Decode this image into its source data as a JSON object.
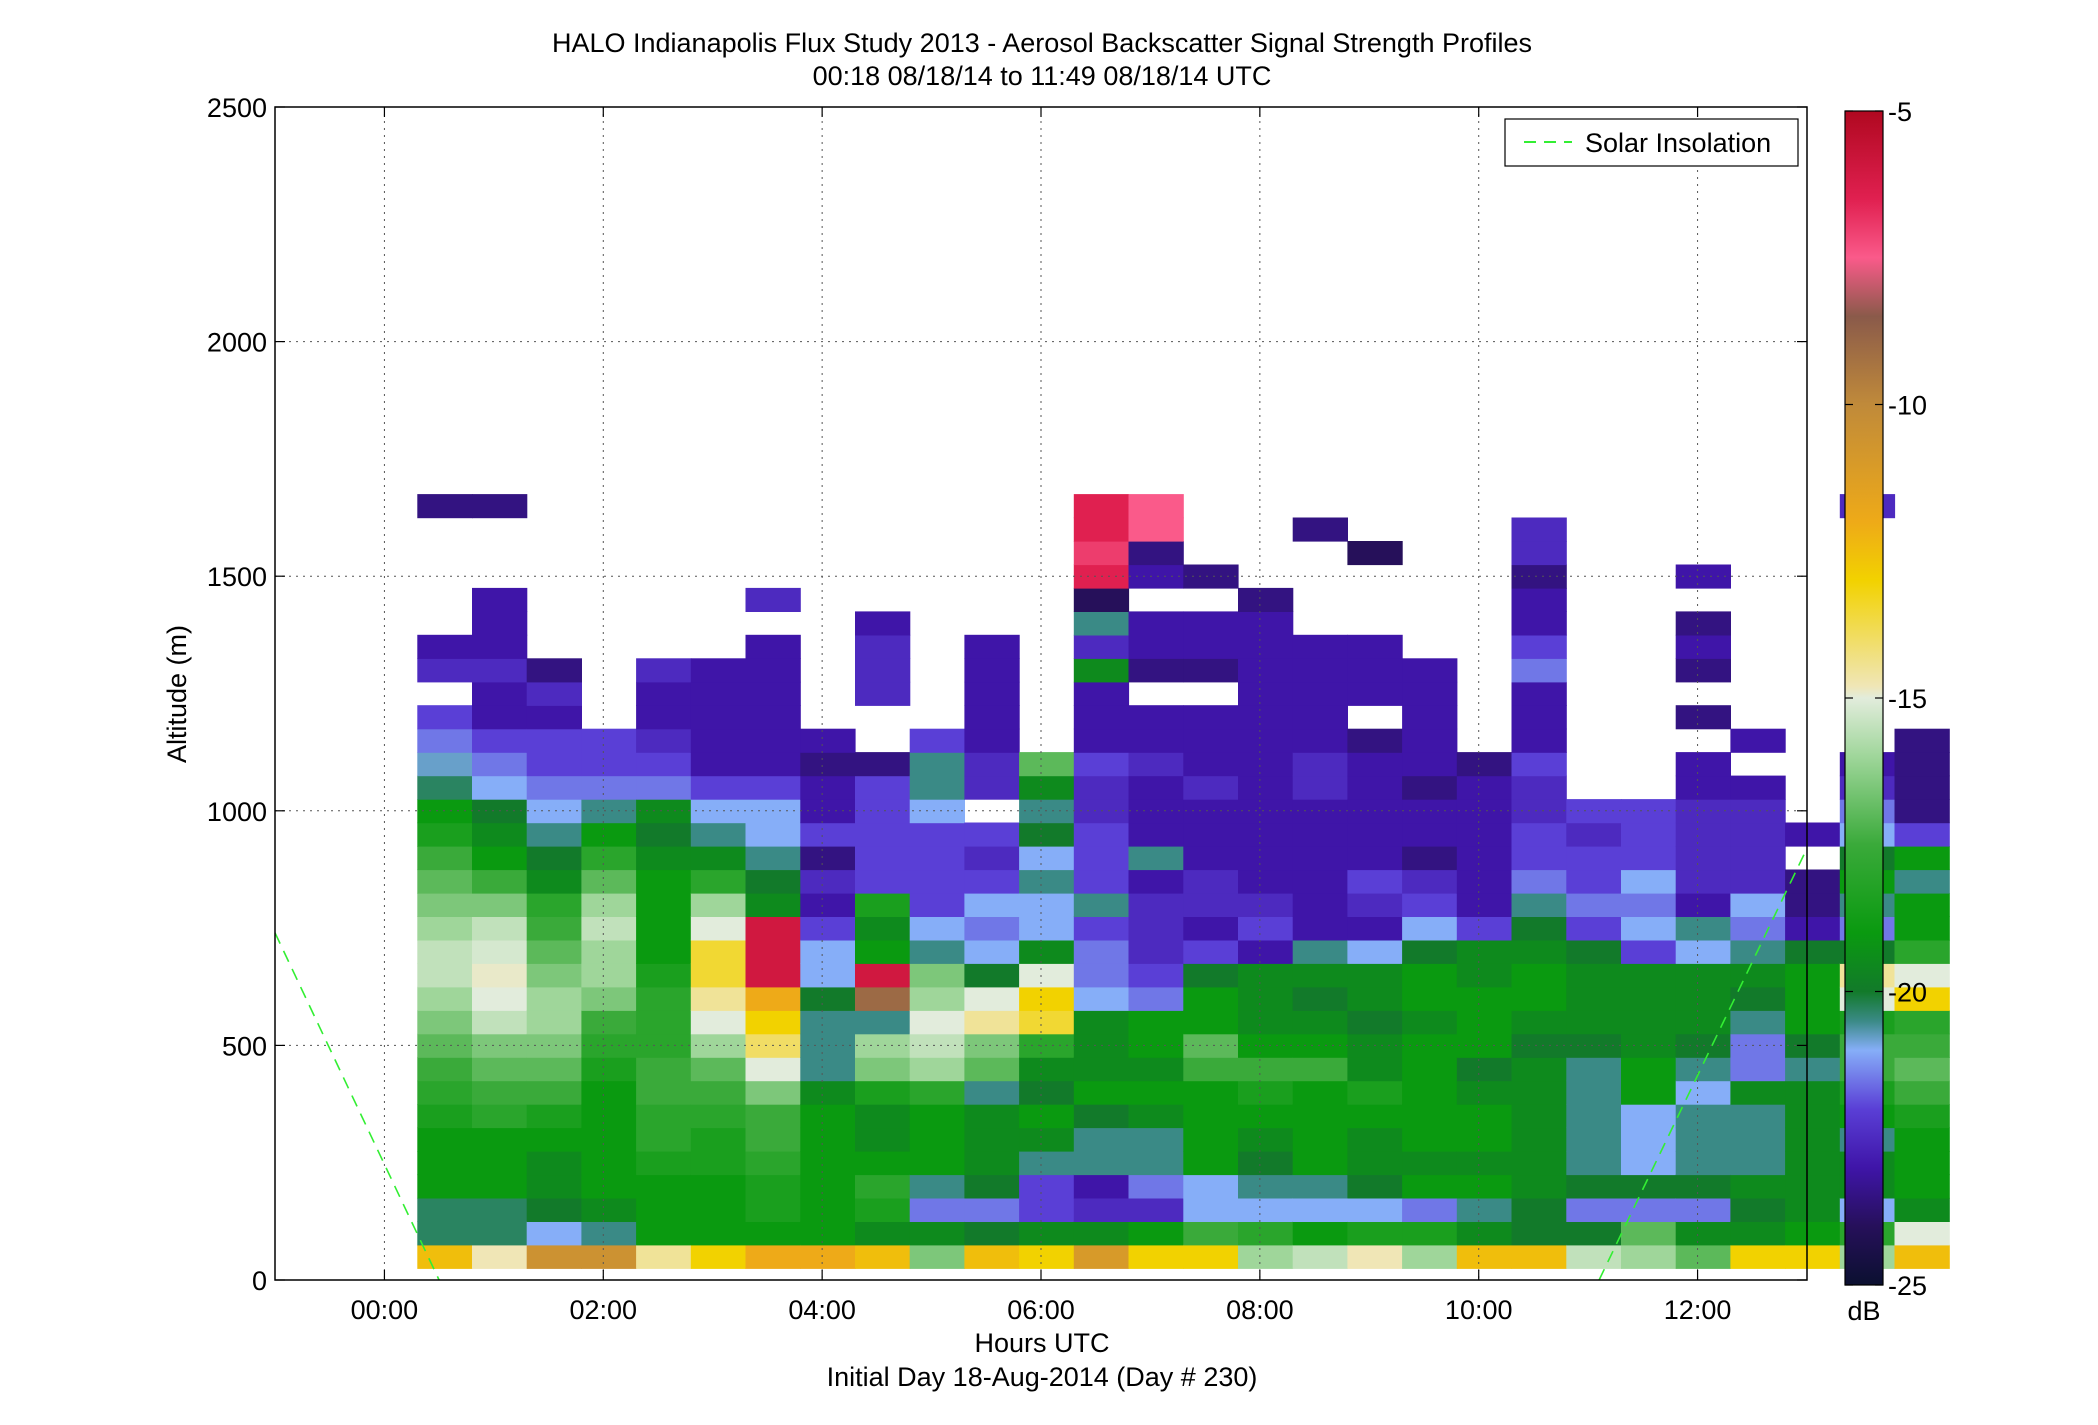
{
  "chart_data": {
    "type": "heatmap",
    "title": "HALO Indianapolis Flux Study 2013 - Aerosol Backscatter Signal Strength Profiles",
    "subtitle": "00:18 08/18/14 to 11:49 08/18/14  UTC",
    "xlabel": "Hours UTC",
    "xlabel2": "Initial Day 18-Aug-2014 (Day # 230)",
    "ylabel": "Altitude (m)",
    "xlim": [
      -1.0,
      13.0
    ],
    "ylim": [
      0,
      2500
    ],
    "x_ticks": [
      0,
      2,
      4,
      6,
      8,
      10,
      12
    ],
    "x_tick_labels": [
      "00:00",
      "02:00",
      "04:00",
      "06:00",
      "08:00",
      "10:00",
      "12:00"
    ],
    "y_ticks": [
      0,
      500,
      1000,
      1500,
      2000,
      2500
    ],
    "y_tick_labels": [
      "0",
      "500",
      "1000",
      "1500",
      "2000",
      "2500"
    ],
    "grid": true,
    "legend": {
      "position": "top-right",
      "entries": [
        {
          "label": "Solar Insolation",
          "color": "#33ee33",
          "style": "dashed"
        }
      ]
    },
    "colorbar": {
      "unit": "dB",
      "range": [
        -25,
        -5
      ],
      "ticks": [
        -25,
        -20,
        -15,
        -10,
        -5
      ],
      "tick_labels": [
        "-25",
        "-20",
        "-15",
        "-10",
        "-5"
      ],
      "stops": [
        [
          -25,
          "#0b1030"
        ],
        [
          -24,
          "#26105a"
        ],
        [
          -23,
          "#3f15a8"
        ],
        [
          -22,
          "#5a3fd6"
        ],
        [
          -21,
          "#86aef8"
        ],
        [
          -20.5,
          "#3a8a86"
        ],
        [
          -20,
          "#127a2a"
        ],
        [
          -19,
          "#0a9a10"
        ],
        [
          -17.5,
          "#3aaa3a"
        ],
        [
          -16,
          "#9fd69a"
        ],
        [
          -15,
          "#e2ecdc"
        ],
        [
          -14.8,
          "#f0e6b6"
        ],
        [
          -13,
          "#f2d200"
        ],
        [
          -12,
          "#eeaa18"
        ],
        [
          -10,
          "#c08a3a"
        ],
        [
          -8.5,
          "#8a5a4a"
        ],
        [
          -7.5,
          "#fa5a8a"
        ],
        [
          -6.5,
          "#e02050"
        ],
        [
          -5,
          "#b00820"
        ]
      ]
    },
    "time_start_hours": 0.3,
    "time_step_hours": 0.5,
    "altitude_start_m": 50,
    "altitude_step_m": 50,
    "profiles": [
      [
        -12.5,
        -20.3,
        -20.3,
        -19.0,
        -19.0,
        -19.0,
        -18.5,
        -18.0,
        -17.5,
        -17.0,
        -16.5,
        -16.0,
        -15.5,
        -15.5,
        -16.0,
        -16.5,
        -17.0,
        -17.5,
        -18.5,
        -19.0,
        -20.3,
        -20.8,
        -21.5,
        -22.0,
        null,
        -22.5,
        -23.0,
        null,
        null,
        null,
        null,
        null,
        -23.5
      ],
      [
        -14.8,
        -20.3,
        -20.3,
        -19.0,
        -19.0,
        -19.0,
        -18.0,
        -17.5,
        -17.0,
        -16.5,
        -15.5,
        -15.0,
        -14.9,
        -15.2,
        -15.5,
        -16.5,
        -17.5,
        -19.0,
        -19.5,
        -20.0,
        -21.0,
        -21.5,
        -22.0,
        -23.0,
        -23.0,
        -22.5,
        -23.0,
        -23.0,
        -23.0,
        null,
        null,
        null,
        -23.5
      ],
      [
        -10.5,
        -21.0,
        -20.0,
        -19.5,
        -19.5,
        -19.0,
        -18.5,
        -17.5,
        -17.0,
        -16.5,
        -16.0,
        -16.0,
        -16.5,
        -17.0,
        -17.5,
        -18.0,
        -19.5,
        -20.0,
        -20.5,
        -21.0,
        -21.5,
        -22.0,
        -22.0,
        -23.0,
        -22.5,
        -23.5,
        null,
        null,
        null,
        null,
        null,
        null,
        null
      ],
      [
        -10.5,
        -20.5,
        -19.5,
        -19.0,
        -19.0,
        -19.0,
        -19.0,
        -19.0,
        -18.5,
        -18.0,
        -17.5,
        -16.5,
        -16.0,
        -16.0,
        -15.5,
        -16.0,
        -17.0,
        -18.0,
        -19.0,
        -20.5,
        -21.5,
        -22.0,
        -22.0,
        null,
        null,
        null,
        null,
        null,
        null,
        null,
        null,
        null,
        null
      ],
      [
        -14.5,
        -19.0,
        -19.0,
        -19.0,
        -18.5,
        -18.0,
        -18.0,
        -17.5,
        -17.5,
        -18.0,
        -18.0,
        -18.0,
        -18.5,
        -19.0,
        -19.0,
        -19.0,
        -19.0,
        -19.5,
        -20.0,
        -19.5,
        -21.5,
        -22.0,
        -22.5,
        -23.0,
        -23.0,
        -22.5,
        null,
        null,
        null,
        null,
        null,
        null,
        null
      ],
      [
        -13.0,
        -19.0,
        -19.0,
        -19.0,
        -18.5,
        -18.5,
        -18.0,
        -17.5,
        -17.0,
        -16.0,
        -15.0,
        -14.5,
        -13.5,
        -13.5,
        -15.0,
        -16.0,
        -18.0,
        -19.5,
        -20.5,
        -21.0,
        -22.0,
        -23.0,
        -23.0,
        -23.0,
        -23.0,
        -23.0,
        null,
        null,
        null,
        null,
        null,
        null,
        null
      ],
      [
        -12.0,
        -19.0,
        -18.5,
        -18.5,
        -18.0,
        -17.5,
        -17.5,
        -16.5,
        -15.0,
        -14.0,
        -13.0,
        -12.0,
        -6.0,
        -6.0,
        -6.0,
        -19.5,
        -20.0,
        -20.5,
        -21.0,
        -21.0,
        -22.0,
        -23.0,
        -23.0,
        -23.0,
        -23.0,
        -23.0,
        -23.0,
        null,
        -22.5,
        null,
        null,
        null,
        null
      ],
      [
        -12.0,
        -19.0,
        -19.0,
        -19.0,
        -19.0,
        -19.0,
        -19.0,
        -19.5,
        -20.5,
        -20.5,
        -20.5,
        -20.0,
        -21.0,
        -21.0,
        -22.0,
        -23.0,
        -22.5,
        -23.5,
        -22.0,
        -23.0,
        -23.0,
        -23.5,
        -23.0,
        null,
        null,
        null,
        null,
        null,
        null,
        null,
        null,
        null,
        null
      ],
      [
        -12.5,
        -19.5,
        -18.5,
        -18.0,
        -19.0,
        -19.5,
        -19.5,
        -18.5,
        -16.5,
        -16.0,
        -20.5,
        -9.0,
        -6.0,
        -19.0,
        -19.5,
        -18.5,
        -22.0,
        -22.0,
        -22.0,
        -22.0,
        -22.0,
        -23.5,
        null,
        null,
        -22.5,
        -22.5,
        -22.5,
        -23.0,
        null,
        null,
        null,
        null,
        null
      ],
      [
        -16.5,
        -19.5,
        -21.5,
        -20.5,
        -19.0,
        -19.0,
        -19.0,
        -18.0,
        -16.0,
        -15.5,
        -15.0,
        -16.0,
        -16.5,
        -20.5,
        -21.0,
        -22.0,
        -22.0,
        -22.0,
        -22.0,
        -21.0,
        -20.5,
        -20.5,
        -22.0,
        null,
        null,
        null,
        null,
        null,
        null,
        null,
        null,
        null,
        null
      ],
      [
        -12.5,
        -20.0,
        -21.5,
        -20.0,
        -19.5,
        -19.5,
        -19.5,
        -20.5,
        -17.0,
        -16.5,
        -14.5,
        -15.0,
        -20.0,
        -21.0,
        -21.5,
        -21.0,
        -22.0,
        -22.5,
        -22.0,
        null,
        -22.5,
        -22.5,
        -23.0,
        -23.0,
        -23.0,
        -23.0,
        -23.0,
        null,
        null,
        null,
        null,
        null,
        null
      ],
      [
        -13.0,
        -19.5,
        -22.0,
        -22.0,
        -20.5,
        -19.5,
        -19.0,
        -20.0,
        -19.5,
        -18.0,
        -13.5,
        -13.0,
        -15.0,
        -19.5,
        -21.0,
        -21.0,
        -20.5,
        -21.0,
        -20.0,
        -20.5,
        -19.5,
        -17.0,
        null,
        null,
        null,
        null,
        null,
        null,
        null,
        null,
        null,
        null,
        null
      ],
      [
        -11.0,
        -19.5,
        -22.5,
        -23.0,
        -20.5,
        -20.5,
        -20.0,
        -19.0,
        -19.5,
        -19.5,
        -19.5,
        -21.0,
        -21.5,
        -21.5,
        -22.0,
        -20.5,
        -22.0,
        -22.0,
        -22.0,
        -22.5,
        -22.5,
        -22.0,
        -23.0,
        -23.0,
        -23.0,
        -19.5,
        -22.5,
        -20.5,
        -24.0,
        -6.5,
        -7.0,
        -6.5,
        -6.5
      ],
      [
        -13.0,
        -19.0,
        -22.5,
        -21.5,
        -20.5,
        -20.5,
        -19.5,
        -19.0,
        -19.5,
        -19.0,
        -19.0,
        -21.5,
        -22.0,
        -22.5,
        -22.5,
        -22.5,
        -23.0,
        -20.5,
        -23.0,
        -23.0,
        -23.0,
        -22.5,
        -23.0,
        -23.0,
        null,
        -23.5,
        -23.0,
        -23.0,
        null,
        -23.0,
        -23.5,
        -7.5,
        -7.5
      ],
      [
        -13.0,
        -17.5,
        -21.0,
        -21.0,
        -19.0,
        -19.0,
        -19.0,
        -19.0,
        -17.5,
        -17.0,
        -19.0,
        -19.0,
        -20.0,
        -22.0,
        -23.0,
        -22.5,
        -22.5,
        -23.0,
        -23.0,
        -23.0,
        -22.5,
        -23.0,
        -23.0,
        -23.0,
        null,
        -23.5,
        -23.0,
        -23.0,
        null,
        -23.5,
        null,
        null,
        null
      ],
      [
        -16.0,
        -18.0,
        -21.0,
        -20.5,
        -20.0,
        -19.5,
        -19.0,
        -18.5,
        -17.5,
        -19.0,
        -19.5,
        -19.5,
        -19.5,
        -23.0,
        -22.0,
        -22.5,
        -23.0,
        -23.0,
        -23.0,
        -23.0,
        -23.0,
        -23.0,
        -23.0,
        -23.0,
        -23.0,
        -23.0,
        -23.0,
        -23.0,
        -23.5,
        null,
        null,
        null,
        null
      ],
      [
        -15.5,
        -19.0,
        -21.0,
        -20.5,
        -19.0,
        -19.0,
        -19.0,
        -19.0,
        -17.5,
        -19.0,
        -19.5,
        -20.0,
        -19.5,
        -20.5,
        -23.0,
        -23.0,
        -23.0,
        -23.0,
        -23.0,
        -23.0,
        -22.5,
        -22.5,
        -23.0,
        -23.0,
        -23.0,
        -23.0,
        -23.0,
        null,
        null,
        null,
        null,
        -23.5,
        null
      ],
      [
        -14.8,
        -18.5,
        -21.0,
        -20.0,
        -19.5,
        -19.5,
        -19.0,
        -18.5,
        -19.5,
        -19.5,
        -20.0,
        -19.5,
        -19.5,
        -21.0,
        -23.0,
        -22.5,
        -22.0,
        -23.0,
        -23.0,
        -23.0,
        -23.0,
        -23.0,
        -23.5,
        null,
        -23.0,
        -23.0,
        -23.0,
        null,
        null,
        null,
        -24.0,
        null,
        null
      ],
      [
        -16.0,
        -18.5,
        -21.5,
        -19.0,
        -19.5,
        -19.0,
        -19.0,
        -19.0,
        -19.0,
        -19.0,
        -19.5,
        -19.0,
        -19.0,
        -20.0,
        -21.0,
        -22.0,
        -22.5,
        -23.5,
        -23.0,
        -23.0,
        -23.5,
        -23.0,
        -23.0,
        -23.0,
        -23.0,
        -23.0,
        null,
        null,
        null,
        null,
        null,
        null,
        null
      ],
      [
        -12.5,
        -19.5,
        -20.5,
        -19.0,
        -19.5,
        -19.0,
        -19.0,
        -19.5,
        -20.0,
        -19.0,
        -19.0,
        -19.0,
        -19.5,
        -19.5,
        -22.0,
        -23.0,
        -23.0,
        -23.0,
        -23.0,
        -23.0,
        -23.0,
        -23.5,
        null,
        null,
        null,
        null,
        null,
        null,
        null,
        null,
        null,
        null,
        null
      ],
      [
        -12.5,
        -20.0,
        -20.0,
        -19.5,
        -19.5,
        -19.5,
        -19.5,
        -19.5,
        -19.5,
        -20.0,
        -19.5,
        -19.0,
        -19.0,
        -19.5,
        -20.0,
        -20.5,
        -21.5,
        -22.0,
        -22.0,
        -22.5,
        -22.5,
        -22.0,
        -23.0,
        -23.0,
        -23.0,
        -21.5,
        -22.0,
        -23.0,
        -23.0,
        -23.5,
        -22.5,
        -22.5,
        null
      ],
      [
        -15.5,
        -20.0,
        -21.5,
        -20.0,
        -20.5,
        -20.5,
        -20.5,
        -20.5,
        -20.5,
        -20.0,
        -19.5,
        -19.5,
        -19.5,
        -20.0,
        -22.0,
        -21.5,
        -22.0,
        -22.0,
        -22.5,
        -22.0,
        null,
        null,
        null,
        null,
        null,
        null,
        null,
        null,
        null,
        null,
        null,
        null,
        null
      ],
      [
        -16.0,
        -17.0,
        -21.5,
        -20.0,
        -21.0,
        -21.0,
        -21.0,
        -19.0,
        -19.0,
        -19.5,
        -19.5,
        -19.5,
        -19.5,
        -22.0,
        -21.0,
        -21.5,
        -21.0,
        -22.0,
        -22.0,
        -22.0,
        null,
        null,
        null,
        null,
        null,
        null,
        null,
        null,
        null,
        null,
        null,
        null,
        null
      ],
      [
        -17.0,
        -19.5,
        -21.5,
        -20.0,
        -20.5,
        -20.5,
        -20.5,
        -21.0,
        -20.5,
        -20.0,
        -19.5,
        -19.5,
        -19.5,
        -21.0,
        -20.5,
        -23.0,
        -22.5,
        -22.5,
        -22.5,
        -22.5,
        -23.0,
        -23.0,
        null,
        -23.5,
        null,
        -23.5,
        -23.0,
        -23.5,
        null,
        -23.0,
        null,
        null,
        null
      ],
      [
        -13.0,
        -19.5,
        -20.0,
        -19.5,
        -20.5,
        -20.5,
        -20.5,
        -19.5,
        -21.5,
        -21.5,
        -20.5,
        -20.0,
        -19.5,
        -20.5,
        -21.5,
        -21.0,
        -22.5,
        -22.5,
        -22.5,
        -22.5,
        -23.0,
        null,
        -23.0,
        null,
        null,
        null,
        null,
        null,
        null,
        null,
        null,
        null,
        null
      ],
      [
        -13.0,
        -19.0,
        -19.5,
        -19.5,
        -19.5,
        -19.5,
        -19.5,
        -19.5,
        -20.5,
        -20.0,
        -19.0,
        -19.0,
        -19.0,
        -20.0,
        -23.0,
        -23.5,
        -23.5,
        null,
        -23.0,
        null,
        null,
        null,
        null,
        null,
        null,
        null,
        null,
        null,
        null,
        null,
        null,
        null
      ],
      [
        -16.0,
        -18.0,
        -21.0,
        -19.5,
        -19.5,
        -20.5,
        -19.0,
        -18.5,
        -17.5,
        -17.5,
        -18.5,
        -15.0,
        -14.5,
        -20.0,
        -21.5,
        -20.5,
        -19.0,
        -20.0,
        -21.0,
        -21.5,
        -22.5,
        -23.0,
        null,
        null,
        null,
        null,
        null,
        null,
        null,
        null,
        null,
        null,
        -22.5
      ],
      [
        -12.5,
        -15.0,
        -19.5,
        -19.0,
        -19.0,
        -19.0,
        -18.5,
        -17.5,
        -17.0,
        -17.5,
        -18.0,
        -13.0,
        -15.0,
        -18.0,
        -19.0,
        -19.0,
        -20.5,
        -19.0,
        -22.0,
        -23.5,
        -23.5,
        -23.5,
        -23.5,
        null,
        null,
        null,
        null,
        null,
        null,
        null,
        null,
        null,
        null
      ]
    ],
    "solar_insolation_segments": [
      {
        "x": [
          -1.0,
          0.5
        ],
        "y": [
          740,
          0
        ]
      },
      {
        "x": [
          11.1,
          13.0
        ],
        "y": [
          0,
          920
        ]
      }
    ]
  }
}
